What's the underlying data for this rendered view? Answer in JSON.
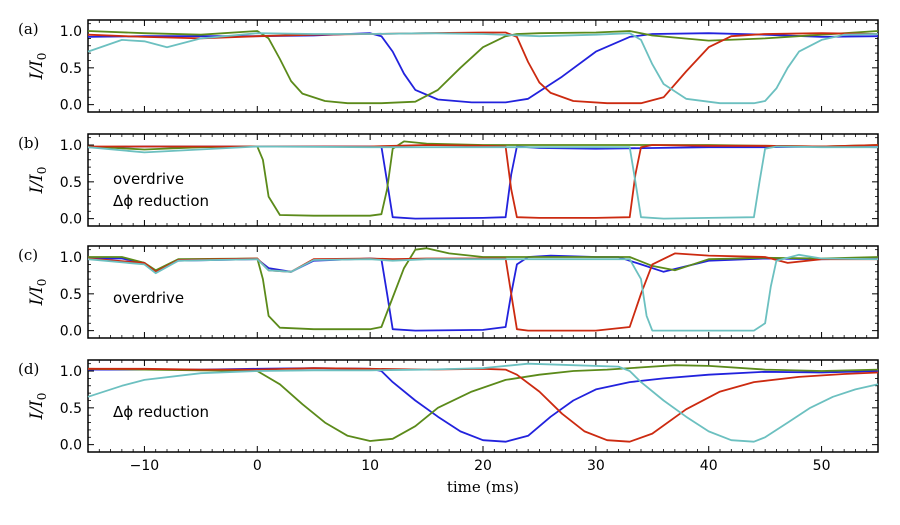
{
  "chart_data": {
    "type": "line",
    "xlabel": "time (ms)",
    "ylabel": "I/I0",
    "xlim": [
      -15,
      55
    ],
    "ylim": [
      -0.1,
      1.15
    ],
    "x_ticks": [
      -10,
      0,
      10,
      20,
      30,
      40,
      50
    ],
    "y_ticks": [
      0.0,
      0.5,
      1.0
    ],
    "series_colors": {
      "blue": "#2222dd",
      "green": "#5b8a1a",
      "red": "#cc2a10",
      "cyan": "#6cc0c0"
    },
    "panels": [
      {
        "label": "(a)",
        "annotation": [],
        "series": [
          {
            "name": "blue",
            "x": [
              -15,
              -10,
              -5,
              0,
              5,
              8,
              10,
              11,
              12,
              13,
              14,
              16,
              19,
              22,
              24,
              27,
              30,
              33,
              35,
              40,
              45,
              50,
              55
            ],
            "y": [
              0.92,
              0.93,
              0.93,
              0.93,
              0.94,
              0.96,
              0.97,
              0.93,
              0.72,
              0.42,
              0.2,
              0.07,
              0.03,
              0.03,
              0.08,
              0.38,
              0.72,
              0.92,
              0.96,
              0.97,
              0.95,
              0.92,
              0.93
            ]
          },
          {
            "name": "green",
            "x": [
              -15,
              -10,
              -5,
              0,
              1,
              2,
              3,
              4,
              6,
              8,
              11,
              14,
              16,
              18,
              20,
              22,
              23,
              25,
              30,
              33,
              35,
              40,
              45,
              50,
              55
            ],
            "y": [
              1.0,
              0.97,
              0.95,
              1.0,
              0.9,
              0.62,
              0.32,
              0.15,
              0.05,
              0.02,
              0.02,
              0.04,
              0.2,
              0.5,
              0.78,
              0.93,
              0.96,
              0.97,
              0.98,
              1.0,
              0.94,
              0.87,
              0.9,
              0.95,
              1.0
            ]
          },
          {
            "name": "red",
            "x": [
              -15,
              -10,
              -5,
              0,
              5,
              10,
              15,
              20,
              22,
              23,
              24,
              25,
              26,
              28,
              31,
              34,
              36,
              38,
              40,
              42,
              45,
              50,
              55
            ],
            "y": [
              0.95,
              0.92,
              0.9,
              0.93,
              0.95,
              0.96,
              0.97,
              0.98,
              0.98,
              0.92,
              0.58,
              0.3,
              0.16,
              0.05,
              0.02,
              0.02,
              0.1,
              0.45,
              0.78,
              0.93,
              0.96,
              0.97,
              0.96
            ]
          },
          {
            "name": "cyan",
            "x": [
              -15,
              -12,
              -10,
              -8,
              -5,
              0,
              5,
              10,
              15,
              20,
              25,
              30,
              33,
              34,
              35,
              36,
              38,
              41,
              44,
              45,
              46,
              47,
              48,
              50,
              52,
              55
            ],
            "y": [
              0.72,
              0.88,
              0.86,
              0.78,
              0.9,
              0.97,
              0.96,
              0.96,
              0.97,
              0.96,
              0.93,
              0.95,
              0.97,
              0.88,
              0.55,
              0.28,
              0.08,
              0.02,
              0.02,
              0.05,
              0.22,
              0.5,
              0.72,
              0.88,
              0.95,
              0.96
            ]
          }
        ]
      },
      {
        "label": "(b)",
        "annotation": [
          "overdrive",
          "Δϕ reduction"
        ],
        "series": [
          {
            "name": "blue",
            "x": [
              -15,
              -10,
              0,
              10,
              11,
              11.5,
              12,
              14,
              20,
              22,
              22.5,
              23,
              25,
              30,
              35,
              40,
              45,
              50,
              55
            ],
            "y": [
              0.97,
              0.98,
              0.98,
              0.98,
              0.98,
              0.5,
              0.02,
              0.0,
              0.01,
              0.02,
              0.6,
              0.98,
              0.96,
              0.95,
              0.96,
              0.97,
              0.97,
              0.98,
              0.97
            ]
          },
          {
            "name": "green",
            "x": [
              -15,
              -10,
              -5,
              0,
              0.5,
              1,
              2,
              5,
              10,
              11,
              11.5,
              12,
              13,
              15,
              20,
              30,
              40,
              45,
              50,
              55
            ],
            "y": [
              0.98,
              0.94,
              0.97,
              0.98,
              0.8,
              0.3,
              0.05,
              0.04,
              0.04,
              0.06,
              0.4,
              0.95,
              1.05,
              1.02,
              1.0,
              1.0,
              1.0,
              0.99,
              0.98,
              1.0
            ]
          },
          {
            "name": "red",
            "x": [
              -15,
              -10,
              0,
              10,
              15,
              20,
              22,
              22.5,
              23,
              25,
              30,
              33,
              33.5,
              34,
              35,
              40,
              45,
              50,
              55
            ],
            "y": [
              0.98,
              0.98,
              0.98,
              0.98,
              1.0,
              0.99,
              0.98,
              0.4,
              0.02,
              0.01,
              0.01,
              0.02,
              0.6,
              0.97,
              1.0,
              0.99,
              0.99,
              0.98,
              1.0
            ]
          },
          {
            "name": "cyan",
            "x": [
              -15,
              -10,
              0,
              10,
              20,
              30,
              33,
              33.5,
              34,
              36,
              40,
              44,
              44.5,
              45,
              46,
              50,
              55
            ],
            "y": [
              0.97,
              0.9,
              0.98,
              0.97,
              0.97,
              0.97,
              0.97,
              0.5,
              0.02,
              0.0,
              0.01,
              0.02,
              0.5,
              0.95,
              0.98,
              0.97,
              0.97
            ]
          }
        ]
      },
      {
        "label": "(c)",
        "annotation": [
          "overdrive"
        ],
        "series": [
          {
            "name": "blue",
            "x": [
              -15,
              -12,
              -10,
              -9,
              -7,
              0,
              1,
              3,
              5,
              10,
              11,
              11.5,
              12,
              14,
              20,
              22,
              22.5,
              23,
              24,
              26,
              30,
              32,
              34,
              36,
              40,
              45,
              50,
              55
            ],
            "y": [
              0.98,
              0.98,
              0.92,
              0.8,
              0.95,
              0.97,
              0.85,
              0.8,
              0.95,
              0.98,
              0.97,
              0.5,
              0.02,
              0.0,
              0.01,
              0.05,
              0.5,
              0.9,
              1.0,
              1.02,
              1.0,
              1.0,
              0.9,
              0.8,
              0.95,
              0.98,
              0.97,
              0.98
            ]
          },
          {
            "name": "green",
            "x": [
              -15,
              -12,
              -10,
              -9,
              -7,
              0,
              0.5,
              1,
              2,
              5,
              10,
              11,
              12,
              13,
              14,
              15,
              17,
              20,
              22,
              25,
              30,
              33,
              35,
              37,
              40,
              45,
              50,
              55
            ],
            "y": [
              1.0,
              1.0,
              0.92,
              0.82,
              0.97,
              0.98,
              0.7,
              0.2,
              0.04,
              0.02,
              0.02,
              0.05,
              0.45,
              0.85,
              1.1,
              1.12,
              1.05,
              1.0,
              1.0,
              1.0,
              1.0,
              1.0,
              0.88,
              0.82,
              0.97,
              0.99,
              0.98,
              1.0
            ]
          },
          {
            "name": "red",
            "x": [
              -15,
              -10,
              -9,
              -7,
              0,
              1,
              3,
              5,
              10,
              12,
              15,
              20,
              22,
              22.5,
              23,
              24,
              30,
              33,
              34,
              35,
              37,
              40,
              45,
              47,
              50,
              55
            ],
            "y": [
              0.98,
              0.92,
              0.8,
              0.96,
              0.98,
              0.82,
              0.8,
              0.97,
              0.98,
              0.97,
              0.98,
              0.98,
              0.98,
              0.5,
              0.02,
              0.0,
              0.0,
              0.05,
              0.5,
              0.9,
              1.05,
              1.02,
              1.0,
              0.92,
              0.97,
              0.97
            ]
          },
          {
            "name": "cyan",
            "x": [
              -15,
              -10,
              -9,
              -7,
              0,
              1,
              3,
              5,
              10,
              12,
              15,
              20,
              25,
              30,
              33,
              34,
              34.5,
              35,
              38,
              44,
              45,
              45.5,
              46,
              48,
              50,
              55
            ],
            "y": [
              0.97,
              0.9,
              0.78,
              0.95,
              0.97,
              0.82,
              0.8,
              0.96,
              0.97,
              0.95,
              0.97,
              0.97,
              0.97,
              0.97,
              0.97,
              0.7,
              0.2,
              0.0,
              0.0,
              0.0,
              0.1,
              0.6,
              0.95,
              1.03,
              0.98,
              0.97
            ]
          }
        ]
      },
      {
        "label": "(d)",
        "annotation": [
          "Δϕ reduction"
        ],
        "series": [
          {
            "name": "blue",
            "x": [
              -15,
              -10,
              -5,
              0,
              5,
              10,
              11,
              12,
              14,
              16,
              18,
              20,
              22,
              24,
              26,
              28,
              30,
              33,
              36,
              40,
              45,
              50,
              55
            ],
            "y": [
              1.02,
              1.02,
              1.02,
              1.03,
              1.04,
              1.03,
              1.0,
              0.85,
              0.6,
              0.38,
              0.18,
              0.06,
              0.04,
              0.12,
              0.38,
              0.6,
              0.75,
              0.85,
              0.9,
              0.95,
              0.99,
              0.98,
              1.0
            ]
          },
          {
            "name": "green",
            "x": [
              -15,
              -10,
              -5,
              0,
              2,
              4,
              6,
              8,
              10,
              12,
              14,
              16,
              19,
              22,
              25,
              28,
              31,
              34,
              37,
              40,
              45,
              50,
              55
            ],
            "y": [
              1.03,
              1.02,
              1.01,
              1.0,
              0.82,
              0.55,
              0.3,
              0.12,
              0.05,
              0.08,
              0.25,
              0.5,
              0.72,
              0.88,
              0.95,
              1.0,
              1.02,
              1.05,
              1.08,
              1.07,
              1.02,
              1.0,
              1.02
            ]
          },
          {
            "name": "red",
            "x": [
              -15,
              -10,
              -5,
              0,
              5,
              10,
              15,
              20,
              22,
              23,
              25,
              27,
              29,
              31,
              33,
              35,
              38,
              41,
              44,
              48,
              52,
              55
            ],
            "y": [
              1.03,
              1.03,
              1.02,
              1.02,
              1.04,
              1.03,
              1.02,
              1.03,
              1.02,
              0.95,
              0.72,
              0.42,
              0.18,
              0.06,
              0.04,
              0.15,
              0.48,
              0.72,
              0.85,
              0.92,
              0.96,
              0.98
            ]
          },
          {
            "name": "cyan",
            "x": [
              -15,
              -12,
              -10,
              -5,
              0,
              5,
              10,
              15,
              20,
              24,
              28,
              32,
              33,
              34,
              36,
              38,
              40,
              42,
              44,
              45,
              47,
              49,
              51,
              53,
              55
            ],
            "y": [
              0.65,
              0.8,
              0.88,
              0.97,
              1.0,
              1.01,
              1.01,
              1.02,
              1.04,
              1.1,
              1.08,
              1.06,
              1.0,
              0.85,
              0.6,
              0.38,
              0.18,
              0.06,
              0.04,
              0.1,
              0.3,
              0.5,
              0.65,
              0.75,
              0.82
            ]
          }
        ]
      }
    ]
  }
}
